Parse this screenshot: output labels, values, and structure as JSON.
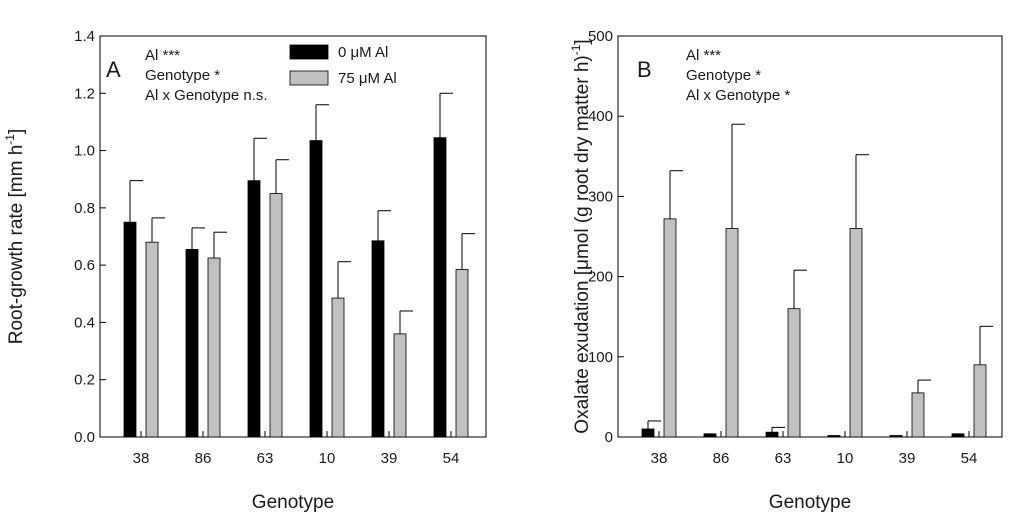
{
  "chart_data": [
    {
      "type": "bar",
      "panel_label": "A",
      "categories": [
        "38",
        "86",
        "63",
        "10",
        "39",
        "54"
      ],
      "series": [
        {
          "name": "0 μM Al",
          "color": "#000000",
          "values": [
            0.75,
            0.655,
            0.895,
            1.035,
            0.685,
            1.045
          ],
          "errors": [
            0.145,
            0.075,
            0.148,
            0.125,
            0.105,
            0.155
          ]
        },
        {
          "name": "75 μM Al",
          "color": "#c0c0c0",
          "values": [
            0.68,
            0.625,
            0.85,
            0.485,
            0.36,
            0.585
          ],
          "errors": [
            0.085,
            0.09,
            0.118,
            0.127,
            0.08,
            0.125
          ]
        }
      ],
      "xlabel": "Genotype",
      "ylabel_main": "Root-growth rate [mm h",
      "ylabel_sup": "-1",
      "ylabel_end": "]",
      "ylim": [
        0,
        1.4
      ],
      "yticks": [
        "0.0",
        "0.2",
        "0.4",
        "0.6",
        "0.8",
        "1.0",
        "1.2",
        "1.4"
      ],
      "annotations": [
        "Al ***",
        "Genotype *",
        "Al x Genotype n.s."
      ],
      "legend": [
        "0 μM Al",
        "75 μM Al"
      ],
      "legend_position": "top-center"
    },
    {
      "type": "bar",
      "panel_label": "B",
      "categories": [
        "38",
        "86",
        "63",
        "10",
        "39",
        "54"
      ],
      "series": [
        {
          "name": "0 μM Al",
          "color": "#000000",
          "values": [
            10,
            4,
            6,
            1,
            1,
            4
          ],
          "errors": [
            10,
            0,
            6,
            0,
            0,
            0
          ]
        },
        {
          "name": "75 μM Al",
          "color": "#c0c0c0",
          "values": [
            272,
            260,
            160,
            260,
            55,
            90
          ],
          "errors": [
            60,
            130,
            48,
            92,
            16,
            48
          ]
        }
      ],
      "xlabel": "Genotype",
      "ylabel_main": "Oxalate exudation [μmol (g root dry matter h)",
      "ylabel_sup": "-1",
      "ylabel_end": "]",
      "ylim": [
        0,
        500
      ],
      "yticks": [
        "0",
        "100",
        "200",
        "300",
        "400",
        "500"
      ],
      "annotations": [
        "Al ***",
        "Genotype *",
        "Al x Genotype *"
      ]
    }
  ]
}
